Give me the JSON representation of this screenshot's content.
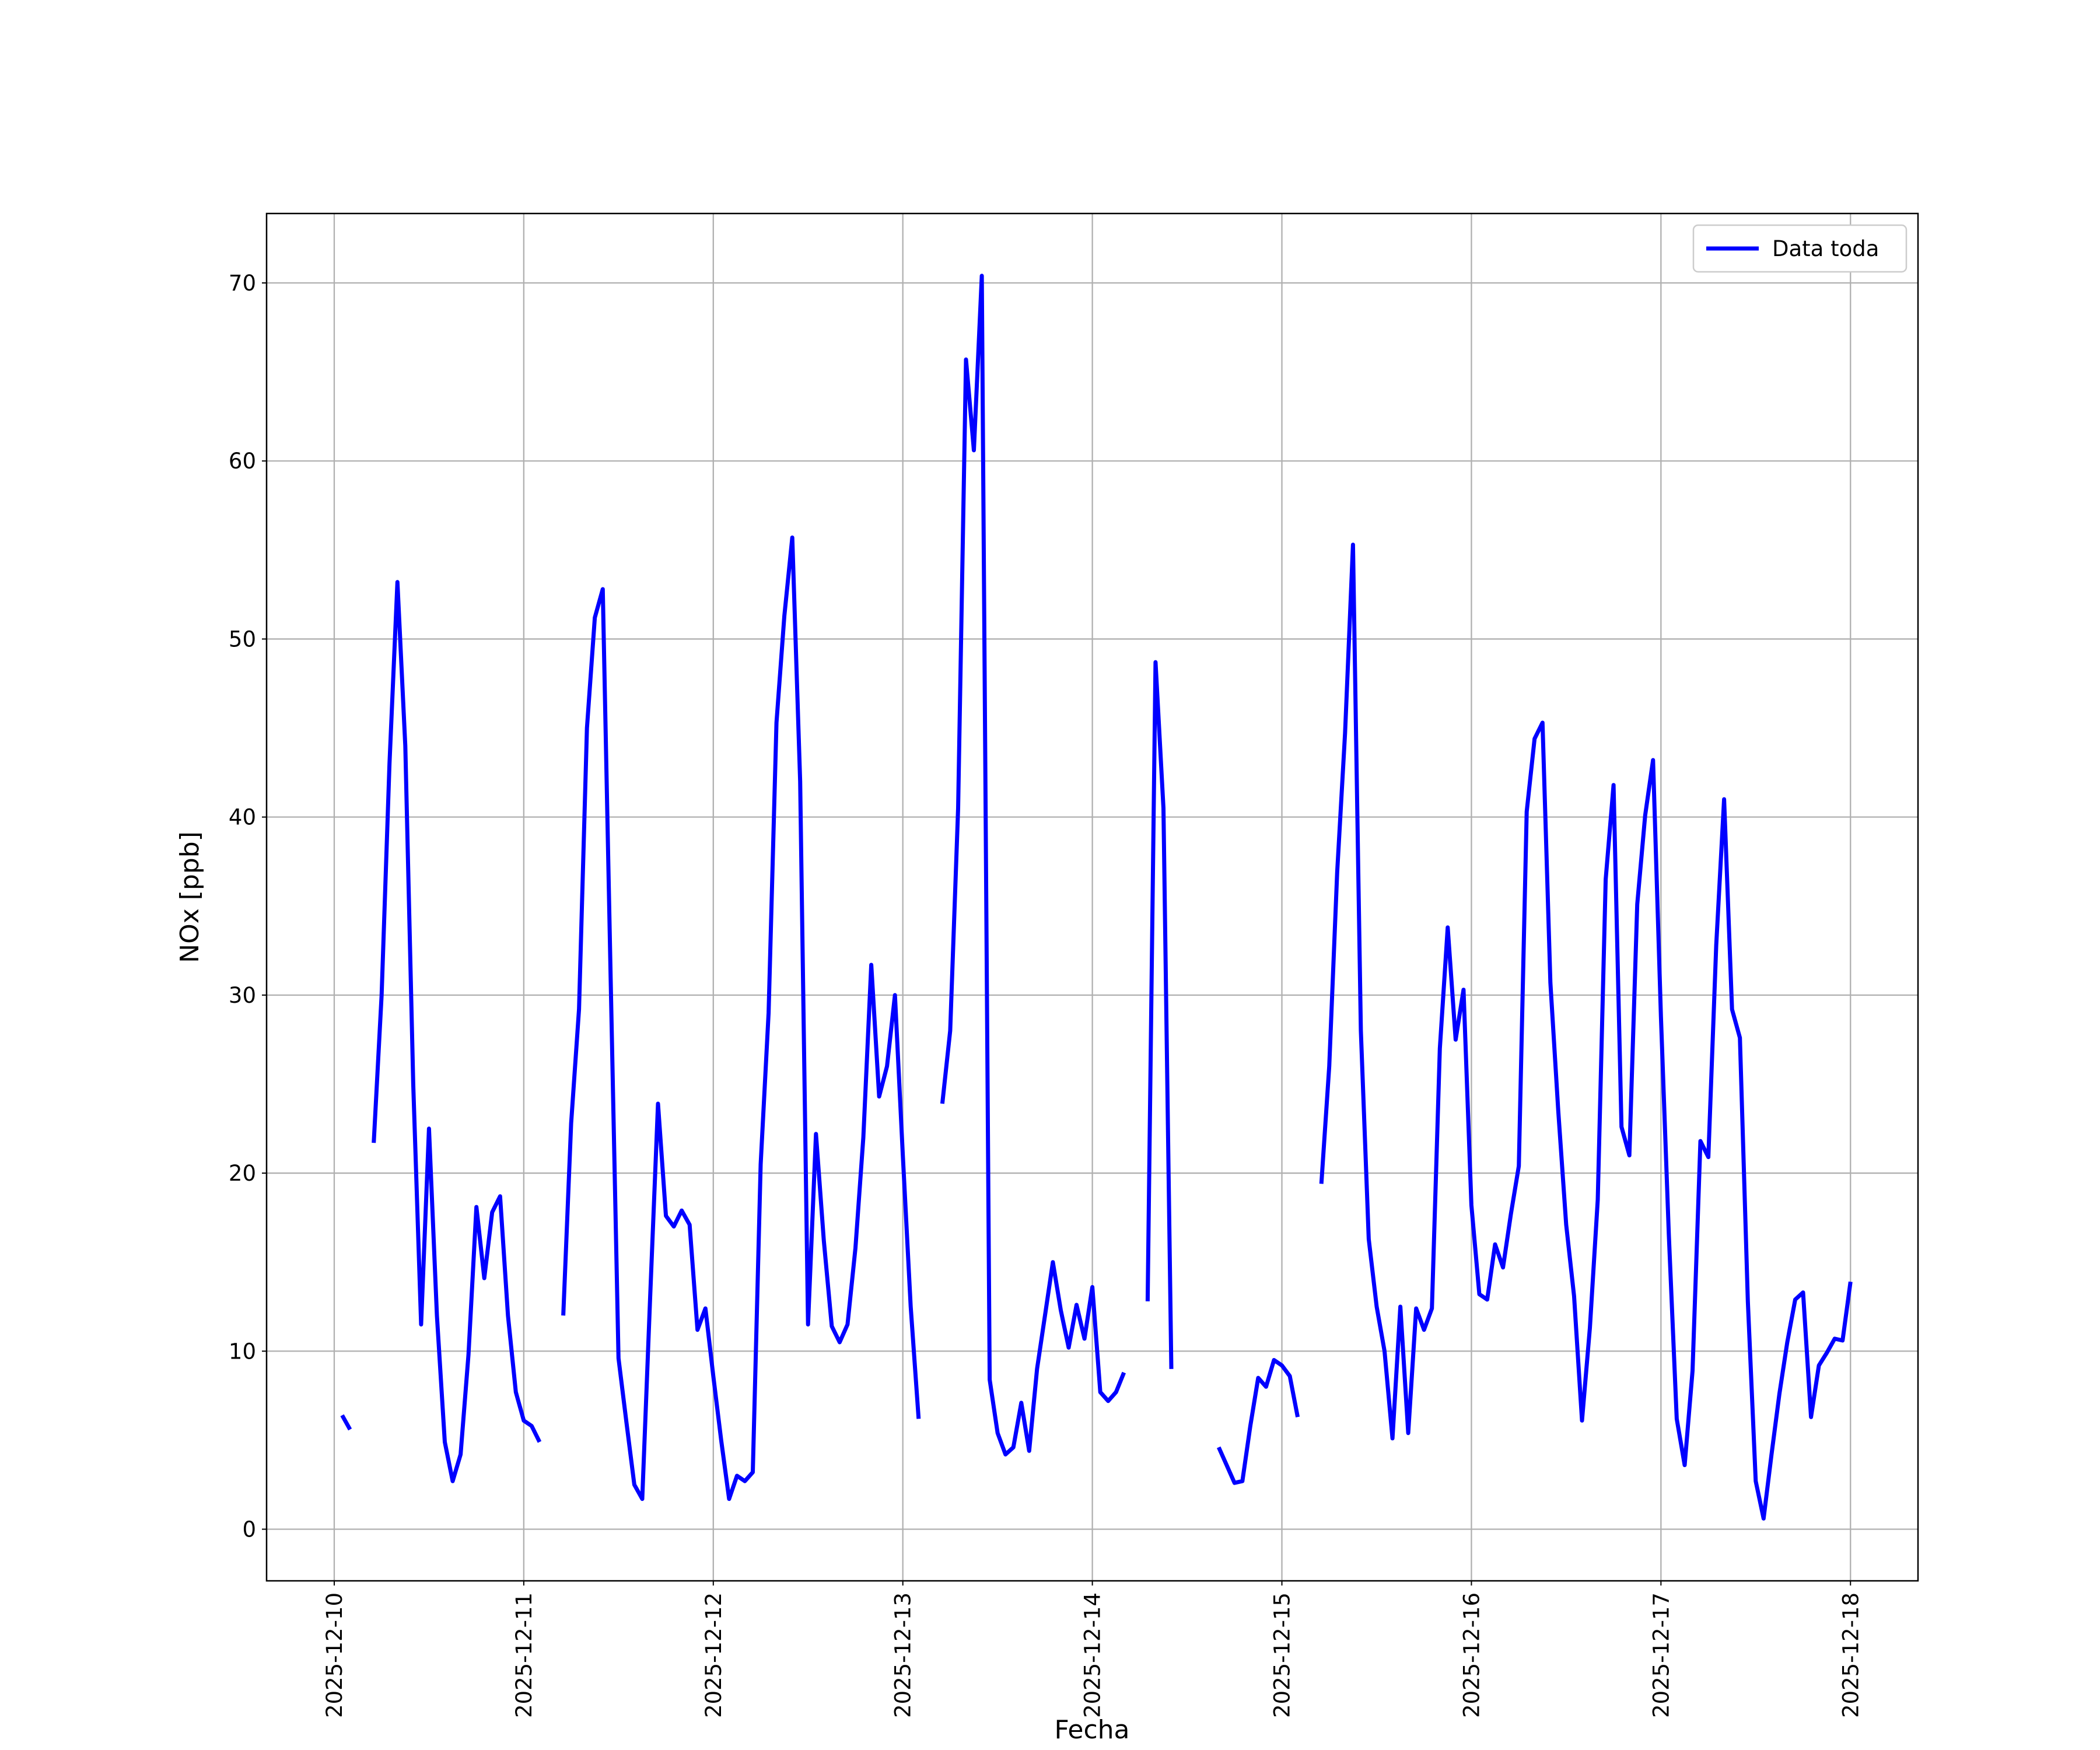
{
  "chart_data": {
    "type": "line",
    "x_label": "Fecha",
    "y_label": "NOx [ppb]",
    "x": [
      "2025-12-10T01:00",
      "2025-12-10T02:00",
      "2025-12-10T03:00",
      "2025-12-10T04:00",
      "2025-12-10T05:00",
      "2025-12-10T06:00",
      "2025-12-10T07:00",
      "2025-12-10T08:00",
      "2025-12-10T09:00",
      "2025-12-10T10:00",
      "2025-12-10T11:00",
      "2025-12-10T12:00",
      "2025-12-10T13:00",
      "2025-12-10T14:00",
      "2025-12-10T15:00",
      "2025-12-10T16:00",
      "2025-12-10T17:00",
      "2025-12-10T18:00",
      "2025-12-10T19:00",
      "2025-12-10T20:00",
      "2025-12-10T21:00",
      "2025-12-10T22:00",
      "2025-12-10T23:00",
      "2025-12-11T00:00",
      "2025-12-11T01:00",
      "2025-12-11T02:00",
      "2025-12-11T03:00",
      "2025-12-11T04:00",
      "2025-12-11T05:00",
      "2025-12-11T06:00",
      "2025-12-11T07:00",
      "2025-12-11T08:00",
      "2025-12-11T09:00",
      "2025-12-11T10:00",
      "2025-12-11T11:00",
      "2025-12-11T12:00",
      "2025-12-11T13:00",
      "2025-12-11T14:00",
      "2025-12-11T15:00",
      "2025-12-11T16:00",
      "2025-12-11T17:00",
      "2025-12-11T18:00",
      "2025-12-11T19:00",
      "2025-12-11T20:00",
      "2025-12-11T21:00",
      "2025-12-11T22:00",
      "2025-12-11T23:00",
      "2025-12-12T00:00",
      "2025-12-12T01:00",
      "2025-12-12T02:00",
      "2025-12-12T03:00",
      "2025-12-12T04:00",
      "2025-12-12T05:00",
      "2025-12-12T06:00",
      "2025-12-12T07:00",
      "2025-12-12T08:00",
      "2025-12-12T09:00",
      "2025-12-12T10:00",
      "2025-12-12T11:00",
      "2025-12-12T12:00",
      "2025-12-12T13:00",
      "2025-12-12T14:00",
      "2025-12-12T15:00",
      "2025-12-12T16:00",
      "2025-12-12T17:00",
      "2025-12-12T18:00",
      "2025-12-12T19:00",
      "2025-12-12T20:00",
      "2025-12-12T21:00",
      "2025-12-12T22:00",
      "2025-12-12T23:00",
      "2025-12-13T00:00",
      "2025-12-13T01:00",
      "2025-12-13T02:00",
      "2025-12-13T03:00",
      "2025-12-13T04:00",
      "2025-12-13T05:00",
      "2025-12-13T06:00",
      "2025-12-13T07:00",
      "2025-12-13T08:00",
      "2025-12-13T09:00",
      "2025-12-13T10:00",
      "2025-12-13T11:00",
      "2025-12-13T12:00",
      "2025-12-13T13:00",
      "2025-12-13T14:00",
      "2025-12-13T15:00",
      "2025-12-13T16:00",
      "2025-12-13T17:00",
      "2025-12-13T18:00",
      "2025-12-13T19:00",
      "2025-12-13T20:00",
      "2025-12-13T21:00",
      "2025-12-13T22:00",
      "2025-12-13T23:00",
      "2025-12-14T00:00",
      "2025-12-14T01:00",
      "2025-12-14T02:00",
      "2025-12-14T03:00",
      "2025-12-14T04:00",
      "2025-12-14T05:00",
      "2025-12-14T06:00",
      "2025-12-14T07:00",
      "2025-12-14T08:00",
      "2025-12-14T09:00",
      "2025-12-14T10:00",
      "2025-12-14T11:00",
      "2025-12-14T12:00",
      "2025-12-14T13:00",
      "2025-12-14T14:00",
      "2025-12-14T15:00",
      "2025-12-14T16:00",
      "2025-12-14T17:00",
      "2025-12-14T18:00",
      "2025-12-14T19:00",
      "2025-12-14T20:00",
      "2025-12-14T21:00",
      "2025-12-14T22:00",
      "2025-12-14T23:00",
      "2025-12-15T00:00",
      "2025-12-15T01:00",
      "2025-12-15T02:00",
      "2025-12-15T03:00",
      "2025-12-15T04:00",
      "2025-12-15T05:00",
      "2025-12-15T06:00",
      "2025-12-15T07:00",
      "2025-12-15T08:00",
      "2025-12-15T09:00",
      "2025-12-15T10:00",
      "2025-12-15T11:00",
      "2025-12-15T12:00",
      "2025-12-15T13:00",
      "2025-12-15T14:00",
      "2025-12-15T15:00",
      "2025-12-15T16:00",
      "2025-12-15T17:00",
      "2025-12-15T18:00",
      "2025-12-15T19:00",
      "2025-12-15T20:00",
      "2025-12-15T21:00",
      "2025-12-15T22:00",
      "2025-12-15T23:00",
      "2025-12-16T00:00",
      "2025-12-16T01:00",
      "2025-12-16T02:00",
      "2025-12-16T03:00",
      "2025-12-16T04:00",
      "2025-12-16T05:00",
      "2025-12-16T06:00",
      "2025-12-16T07:00",
      "2025-12-16T08:00",
      "2025-12-16T09:00",
      "2025-12-16T10:00",
      "2025-12-16T11:00",
      "2025-12-16T12:00",
      "2025-12-16T13:00",
      "2025-12-16T14:00",
      "2025-12-16T15:00",
      "2025-12-16T16:00",
      "2025-12-16T17:00",
      "2025-12-16T18:00",
      "2025-12-16T19:00",
      "2025-12-16T20:00",
      "2025-12-16T21:00",
      "2025-12-16T22:00",
      "2025-12-16T23:00",
      "2025-12-17T00:00",
      "2025-12-17T01:00",
      "2025-12-17T02:00",
      "2025-12-17T03:00",
      "2025-12-17T04:00",
      "2025-12-17T05:00",
      "2025-12-17T06:00",
      "2025-12-17T07:00",
      "2025-12-17T08:00",
      "2025-12-17T09:00",
      "2025-12-17T10:00",
      "2025-12-17T11:00",
      "2025-12-17T12:00",
      "2025-12-17T13:00",
      "2025-12-17T14:00",
      "2025-12-17T15:00",
      "2025-12-17T16:00",
      "2025-12-17T17:00",
      "2025-12-17T18:00",
      "2025-12-17T19:00",
      "2025-12-17T20:00",
      "2025-12-17T21:00",
      "2025-12-17T22:00",
      "2025-12-17T23:00",
      "2025-12-18T00:00"
    ],
    "series": [
      {
        "name": "Data toda",
        "color": "#0000ff",
        "values": [
          6.4,
          5.6,
          null,
          null,
          21.7,
          30,
          43,
          53.2,
          44,
          25,
          11.5,
          22.5,
          12,
          4.9,
          2.7,
          4.2,
          9.8,
          18.1,
          14.1,
          17.8,
          18.7,
          12,
          7.7,
          6.1,
          5.8,
          4.9,
          null,
          null,
          12,
          22.8,
          29.2,
          45,
          51.2,
          52.8,
          31,
          9.6,
          6,
          2.5,
          1.7,
          13,
          23.9,
          17.6,
          17,
          17.9,
          17.1,
          11.2,
          12.4,
          8.6,
          5,
          1.7,
          3,
          2.7,
          3.2,
          20.5,
          29,
          45.3,
          51.3,
          55.7,
          42,
          11.5,
          22.2,
          16.2,
          11.4,
          10.5,
          11.5,
          15.8,
          22,
          31.7,
          24.3,
          26,
          30,
          21,
          12.5,
          6.2,
          null,
          null,
          23.9,
          28,
          40.5,
          65.7,
          60.6,
          70.4,
          8.4,
          5.4,
          4.2,
          4.6,
          7.1,
          4.4,
          9,
          12,
          15,
          12.3,
          10.2,
          12.6,
          10.7,
          13.6,
          7.7,
          7.2,
          7.7,
          8.8,
          null,
          null,
          12.8,
          48.7,
          40.5,
          9,
          null,
          null,
          null,
          null,
          null,
          4.6,
          3.6,
          2.6,
          2.7,
          5.8,
          8.5,
          8,
          9.5,
          9.2,
          8.6,
          6.3,
          null,
          null,
          19.4,
          26,
          36.9,
          44.7,
          55.3,
          28,
          16.3,
          12.5,
          10,
          5.1,
          12.5,
          5.4,
          12.4,
          11.2,
          12.4,
          27,
          33.8,
          27.5,
          30.3,
          18.2,
          13.2,
          12.9,
          16,
          14.7,
          17.7,
          20.4,
          40.3,
          44.4,
          45.3,
          30.7,
          23.5,
          17.1,
          13.1,
          6.1,
          11.3,
          18.5,
          36.5,
          41.8,
          22.6,
          21,
          35.1,
          40.1,
          43.2,
          28.8,
          16.5,
          6.2,
          3.6,
          8.9,
          21.8,
          20.9,
          32.8,
          41,
          29.2,
          27.6,
          12.8,
          2.7,
          0.6,
          4.2,
          7.6,
          10.5,
          12.9,
          13.3,
          6.3,
          9.2,
          9.9,
          10.7,
          10.6,
          13.9
        ]
      }
    ],
    "xlim": [
      "2025-12-09T15:26",
      "2025-12-18T08:33"
    ],
    "xticks": [
      "2025-12-10",
      "2025-12-11",
      "2025-12-12",
      "2025-12-13",
      "2025-12-14",
      "2025-12-15",
      "2025-12-16",
      "2025-12-17",
      "2025-12-18"
    ],
    "ylim": [
      -2.9,
      73.9
    ],
    "yticks": [
      0,
      10,
      20,
      30,
      40,
      50,
      60,
      70
    ],
    "grid": true,
    "legend": "upper right"
  }
}
